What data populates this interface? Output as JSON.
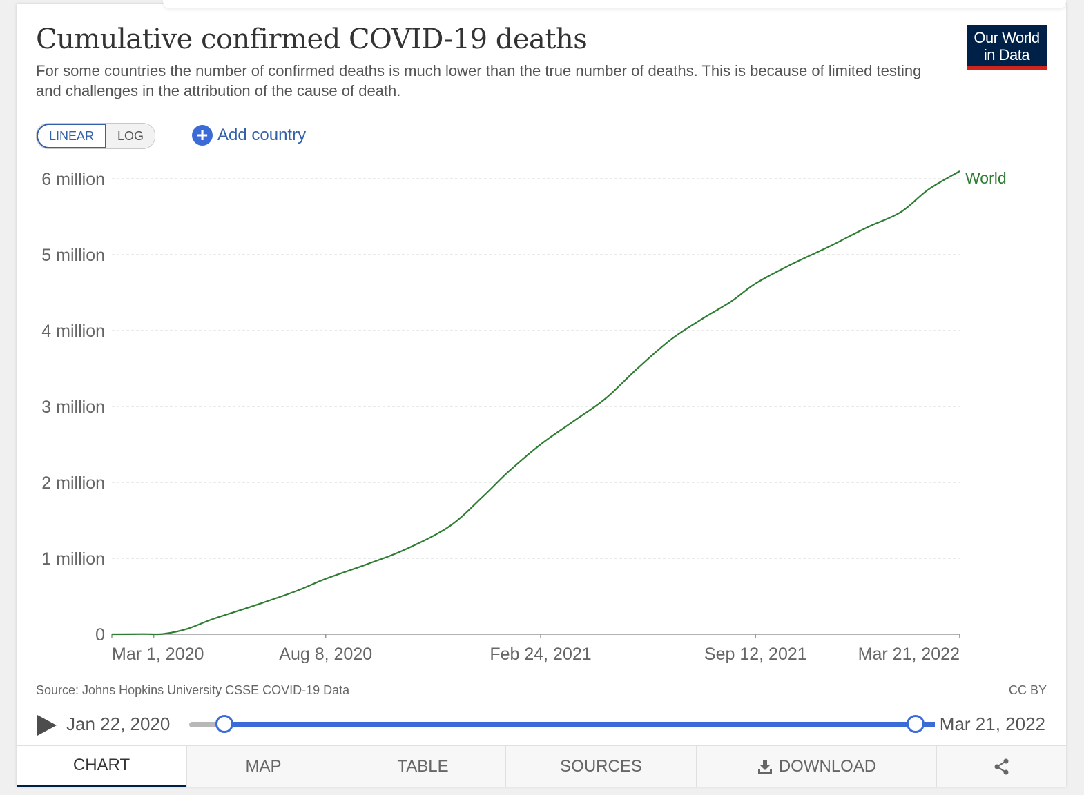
{
  "header": {
    "title": "Cumulative confirmed COVID-19 deaths",
    "subtitle": "For some countries the number of confirmed deaths is much lower than the true number of deaths. This is because of limited testing and challenges in the attribution of the cause of death.",
    "logo_line1": "Our World",
    "logo_line2": "in Data"
  },
  "controls": {
    "linear_label": "LINEAR",
    "log_label": "LOG",
    "add_country_label": "Add country"
  },
  "chart_data": {
    "type": "line",
    "title": "Cumulative confirmed COVID-19 deaths",
    "ylim": [
      0,
      6000000
    ],
    "yticks": [
      0,
      1000000,
      2000000,
      3000000,
      4000000,
      5000000,
      6000000
    ],
    "ytick_labels": [
      "0",
      "1 million",
      "2 million",
      "3 million",
      "4 million",
      "5 million",
      "6 million"
    ],
    "xlim": [
      "2020-01-22",
      "2022-03-21"
    ],
    "xticks": [
      "2020-03-01",
      "2020-08-08",
      "2021-02-24",
      "2021-09-12",
      "2022-03-21"
    ],
    "xtick_labels": [
      "Mar 1, 2020",
      "Aug 8, 2020",
      "Feb 24, 2021",
      "Sep 12, 2021",
      "Mar 21, 2022"
    ],
    "grid": true,
    "series": [
      {
        "name": "World",
        "color": "#2e7d32",
        "x": [
          "2020-01-22",
          "2020-02-20",
          "2020-03-10",
          "2020-04-01",
          "2020-04-25",
          "2020-06-01",
          "2020-07-10",
          "2020-08-08",
          "2020-09-15",
          "2020-10-20",
          "2020-12-01",
          "2021-01-01",
          "2021-01-25",
          "2021-02-24",
          "2021-03-25",
          "2021-04-25",
          "2021-05-25",
          "2021-06-25",
          "2021-07-25",
          "2021-08-20",
          "2021-09-12",
          "2021-10-15",
          "2021-11-20",
          "2021-12-25",
          "2022-01-25",
          "2022-02-20",
          "2022-03-21"
        ],
        "y": [
          0,
          2500,
          5000,
          70000,
          200000,
          370000,
          560000,
          730000,
          920000,
          1110000,
          1420000,
          1810000,
          2140000,
          2500000,
          2790000,
          3100000,
          3500000,
          3880000,
          4160000,
          4380000,
          4620000,
          4870000,
          5110000,
          5360000,
          5560000,
          5860000,
          6100000
        ]
      }
    ]
  },
  "footer": {
    "source": "Source: Johns Hopkins University CSSE COVID-19 Data",
    "license": "CC BY"
  },
  "timeline": {
    "start_date": "Jan 22, 2020",
    "end_date": "Mar 21, 2022"
  },
  "tabs": {
    "chart": "CHART",
    "map": "MAP",
    "table": "TABLE",
    "sources": "SOURCES",
    "download": "DOWNLOAD"
  }
}
